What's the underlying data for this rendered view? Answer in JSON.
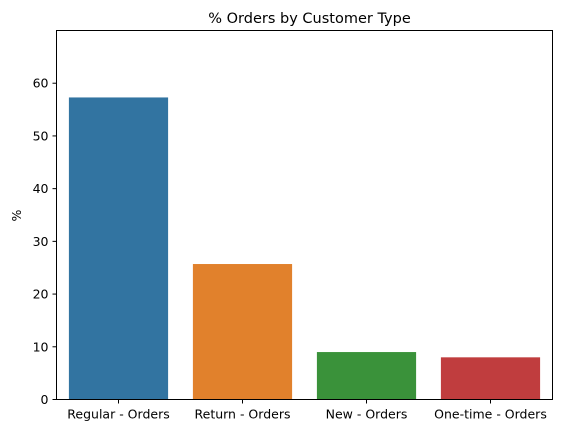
{
  "chart_data": {
    "type": "bar",
    "title": "% Orders by Customer Type",
    "xlabel": "",
    "ylabel": "%",
    "categories": [
      "Regular - Orders",
      "Return - Orders",
      "New - Orders",
      "One-time - Orders"
    ],
    "values": [
      57.3,
      25.7,
      9.0,
      8.0
    ],
    "colors": [
      "#3274a1",
      "#e1812c",
      "#3a923a",
      "#c03d3e"
    ],
    "ylim": [
      0,
      70
    ],
    "yticks": [
      0,
      10,
      20,
      30,
      40,
      50,
      60
    ],
    "ytick_labels": [
      "0",
      "10",
      "20",
      "30",
      "40",
      "50",
      "60"
    ],
    "grid": false,
    "legend": "none"
  }
}
